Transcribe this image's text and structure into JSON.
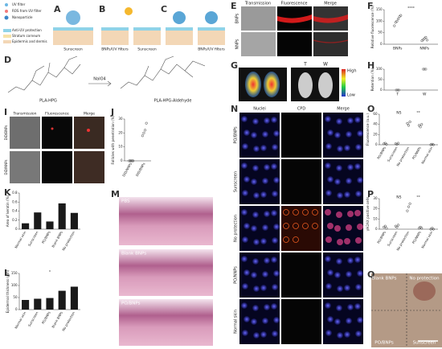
{
  "chart_data": [
    {
      "type": "strip",
      "ylabel": "Relative fluorescence (%)",
      "categories": [
        "BNPs",
        "NNPs"
      ],
      "values": [
        [
          80,
          95,
          100,
          110,
          120,
          125
        ],
        [
          15,
          20,
          25,
          30,
          18
        ]
      ],
      "ylim": [
        0,
        150
      ],
      "yticks": [
        0,
        50,
        100,
        150
      ],
      "color": "#333333",
      "annotations": [
        "****"
      ]
    },
    {
      "type": "strip",
      "ylabel": "Retention (%)",
      "categories": [
        "T",
        "W"
      ],
      "values": [
        [
          0,
          0,
          0
        ],
        [
          100,
          100,
          100
        ]
      ],
      "ylim": [
        0,
        100
      ],
      "yticks": [
        0,
        50,
        100
      ],
      "color": "#555555"
    },
    {
      "type": "strip",
      "ylabel": "Follicles with penetration (%)",
      "categories": [
        "DiD/NNPs",
        "DiD/BNPs"
      ],
      "values": [
        [
          0,
          0,
          0,
          0
        ],
        [
          18,
          20,
          22,
          27
        ]
      ],
      "ylim": [
        0,
        30
      ],
      "yticks": [
        0,
        10,
        20,
        30
      ],
      "color": "#333333"
    },
    {
      "type": "bar",
      "ylabel": "Area of keratin (%)",
      "categories": [
        "Normal skin",
        "Sunscreen",
        "PO/BNPs",
        "Blank BNPs",
        "No protection"
      ],
      "values": [
        0.13,
        0.37,
        0.17,
        0.57,
        0.36
      ],
      "ylim": [
        0,
        0.8
      ],
      "yticks": [
        0,
        0.2,
        0.4,
        0.6,
        0.8
      ],
      "color": "#1a1a1a"
    },
    {
      "type": "bar",
      "ylabel": "Epidermal thickness (μm)",
      "categories": [
        "Normal skin",
        "Sunscreen",
        "PO/BNPs",
        "Blank BNPs",
        "No protection"
      ],
      "values": [
        40,
        45,
        48,
        78,
        95
      ],
      "ylim": [
        0,
        150
      ],
      "yticks": [
        0,
        50,
        100,
        150
      ],
      "color": "#1a1a1a",
      "annotations": [
        "*"
      ]
    },
    {
      "type": "strip",
      "ylabel": "Fluorescence (a.u.)",
      "categories": [
        "PO/BNPs",
        "Sunscreen",
        "No protection",
        "PO/NNPs",
        "Normal skin"
      ],
      "values": [
        [
          2,
          3,
          1
        ],
        [
          2,
          1,
          3
        ],
        [
          42,
          38,
          45
        ],
        [
          38,
          35,
          40
        ],
        [
          0,
          1,
          0
        ]
      ],
      "ylim": [
        0,
        60
      ],
      "yticks": [
        0,
        20,
        40,
        60
      ],
      "color": "#333333",
      "annotations": [
        "NS",
        "**"
      ]
    },
    {
      "type": "strip",
      "ylabel": "γH2AX positive cells",
      "categories": [
        "PO/BNPs",
        "Sunscreen",
        "No protection",
        "PO/NNPs",
        "Normal skin"
      ],
      "values": [
        [
          2,
          3,
          1
        ],
        [
          3,
          2,
          4
        ],
        [
          18,
          22,
          25
        ],
        [
          1,
          2,
          1
        ],
        [
          0,
          1,
          0
        ]
      ],
      "ylim": [
        0,
        30
      ],
      "yticks": [
        0,
        10,
        20,
        30
      ],
      "color": "#333333",
      "annotations": [
        "NS",
        "**"
      ]
    }
  ],
  "figure": {
    "panel_letters": [
      "A",
      "B",
      "C",
      "D",
      "E",
      "F",
      "G",
      "H",
      "I",
      "J",
      "K",
      "L",
      "M",
      "N",
      "O",
      "P",
      "Q"
    ],
    "a_legend": [
      "UV filter",
      "ROS from UV filter",
      "Nanoparticle",
      "Anti-UV protection",
      "Stratum corneum",
      "Epidermis and dermis"
    ],
    "abc_labels": [
      "Sunscreen",
      "BNPs/UV filters",
      "Sunscreen",
      "BNPs/UV filters"
    ],
    "d_labels": [
      "PLA-HPG",
      "NaIO4",
      "PLA-HPG-Aldehyde"
    ],
    "e_columns": [
      "Transmission",
      "Fluorescence",
      "Merge"
    ],
    "e_rows": [
      "BNPs",
      "NNPs"
    ],
    "g_labels": [
      "T",
      "W",
      "High",
      "Low"
    ],
    "i_columns": [
      "Transmission",
      "Fluorescence",
      "Merge"
    ],
    "i_rows": [
      "DiD/BNPs",
      "DiD/NNPs"
    ],
    "m_labels": [
      "PBS",
      "Blank BNPs",
      "PO/BNPs"
    ],
    "n_columns": [
      "Nuclei",
      "CPD",
      "Merge"
    ],
    "n_rows": [
      "PO/BNPs",
      "Sunscreen",
      "No protection",
      "PO/NNPs",
      "Normal skin"
    ],
    "q_labels": [
      "Blank BNPs",
      "No protection",
      "PO/BNPs",
      "Sunscreen"
    ]
  }
}
